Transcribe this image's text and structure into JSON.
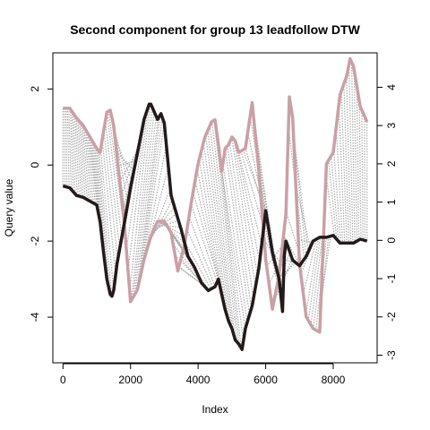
{
  "chart_data": {
    "type": "line",
    "title": "Second component for group 13 leadfollow DTW",
    "xlabel": "Index",
    "ylabel": "Query value",
    "xlim": [
      -300,
      9300
    ],
    "ylim_left": [
      -5.2,
      2.95
    ],
    "ylim_right": [
      -3.2,
      4.9
    ],
    "x_ticks": [
      0,
      2000,
      4000,
      6000,
      8000
    ],
    "y_ticks_left": [
      -4,
      -2,
      0,
      2
    ],
    "y_ticks_right": [
      -3,
      -2,
      -1,
      0,
      1,
      2,
      3,
      4
    ],
    "grid": false,
    "colors": {
      "query": "#231a1a",
      "reference": "#c9a0a8",
      "alignment": "#a0a0a0"
    },
    "series": [
      {
        "role": "query",
        "axis": "left",
        "x": [
          0,
          200,
          400,
          600,
          800,
          1000,
          1100,
          1200,
          1300,
          1400,
          1450,
          1500,
          1600,
          1800,
          2000,
          2200,
          2400,
          2550,
          2600,
          2800,
          2900,
          3000,
          3200,
          3400,
          3500,
          3700,
          3900,
          4100,
          4300,
          4500,
          4600,
          4700,
          4800,
          4900,
          5000,
          5100,
          5200,
          5300,
          5400,
          5600,
          5800,
          6000,
          6200,
          6400,
          6500,
          6550,
          6600,
          6800,
          7000,
          7200,
          7400,
          7600,
          7800,
          8000,
          8200,
          8400,
          8600,
          8800,
          9000
        ],
        "y": [
          -0.55,
          -0.6,
          -0.8,
          -0.85,
          -0.95,
          -1.05,
          -1.5,
          -2.3,
          -3.0,
          -3.4,
          -3.45,
          -3.3,
          -2.6,
          -1.6,
          -0.6,
          0.3,
          1.2,
          1.6,
          1.6,
          1.2,
          1.35,
          1.1,
          -0.8,
          -1.4,
          -1.7,
          -2.4,
          -2.7,
          -3.1,
          -3.3,
          -3.2,
          -3.0,
          -3.4,
          -3.8,
          -4.1,
          -4.3,
          -4.6,
          -4.7,
          -4.85,
          -4.3,
          -3.7,
          -2.7,
          -1.2,
          -2.3,
          -3.0,
          -3.85,
          -2.4,
          -2.0,
          -2.5,
          -2.65,
          -2.4,
          -2.0,
          -1.9,
          -1.9,
          -1.85,
          -2.05,
          -2.05,
          -2.05,
          -1.95,
          -2.0
        ]
      },
      {
        "role": "reference",
        "axis": "right",
        "x": [
          0,
          200,
          400,
          600,
          800,
          1000,
          1100,
          1200,
          1300,
          1400,
          1500,
          1600,
          1800,
          2000,
          2200,
          2400,
          2600,
          2800,
          3000,
          3200,
          3400,
          3600,
          3800,
          4000,
          4200,
          4400,
          4500,
          4600,
          4700,
          4800,
          4900,
          5000,
          5100,
          5200,
          5400,
          5600,
          5800,
          6000,
          6200,
          6400,
          6600,
          6700,
          6800,
          7000,
          7200,
          7400,
          7600,
          7800,
          8000,
          8200,
          8400,
          8500,
          8600,
          8800,
          9000
        ],
        "y": [
          3.45,
          3.45,
          3.2,
          3.0,
          2.7,
          2.4,
          2.3,
          2.85,
          3.35,
          3.4,
          3.0,
          2.2,
          0.6,
          -1.6,
          -1.3,
          -0.5,
          0.1,
          0.5,
          0.5,
          0.2,
          -0.8,
          -0.1,
          1.0,
          2.0,
          2.7,
          3.1,
          3.15,
          2.5,
          1.8,
          2.4,
          2.5,
          2.7,
          2.6,
          2.3,
          2.4,
          3.6,
          1.8,
          -0.5,
          -1.8,
          -0.9,
          0.7,
          3.75,
          3.2,
          -0.6,
          -2.0,
          -2.3,
          -2.4,
          2.0,
          2.3,
          3.8,
          4.3,
          4.75,
          4.55,
          3.5,
          3.1
        ]
      }
    ]
  }
}
